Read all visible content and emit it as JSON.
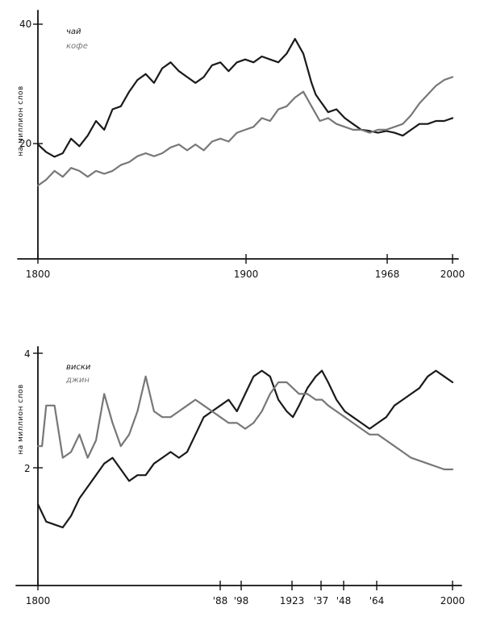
{
  "chart_data": [
    {
      "type": "line",
      "ylabel": "на миллион слов",
      "ylim": [
        0,
        40
      ],
      "y_ticks": [
        20,
        40
      ],
      "xlim": [
        1800,
        2000
      ],
      "x_ticks": [
        "1800",
        "1900",
        "1968",
        "2000"
      ],
      "legend": [
        "чай",
        "кофе"
      ],
      "legend_position": "top-left",
      "grid": false,
      "series": [
        {
          "name": "чай",
          "color": "#1a1a1a",
          "x": [
            1800,
            1804,
            1808,
            1812,
            1816,
            1820,
            1824,
            1828,
            1832,
            1836,
            1840,
            1844,
            1848,
            1852,
            1856,
            1860,
            1864,
            1868,
            1872,
            1876,
            1880,
            1884,
            1888,
            1892,
            1896,
            1900,
            1904,
            1908,
            1912,
            1916,
            1920,
            1924,
            1928,
            1932,
            1934,
            1936,
            1938,
            1940,
            1944,
            1948,
            1952,
            1956,
            1960,
            1964,
            1968,
            1972,
            1976,
            1980,
            1984,
            1988,
            1992,
            1996,
            2000
          ],
          "y": [
            19.5,
            18.2,
            17.4,
            18.0,
            20.5,
            19.2,
            21.0,
            23.5,
            22.0,
            25.5,
            26.0,
            28.5,
            30.5,
            31.5,
            30.0,
            32.5,
            33.5,
            32.0,
            31.0,
            30.0,
            31.0,
            33.0,
            33.5,
            32.0,
            33.5,
            34.0,
            33.5,
            34.5,
            34.0,
            33.5,
            35.0,
            37.5,
            35.0,
            30.0,
            28.0,
            27.0,
            26.0,
            25.0,
            25.5,
            24.0,
            23.0,
            22.0,
            21.8,
            21.5,
            21.8,
            21.5,
            21.0,
            22.0,
            23.0,
            23.0,
            23.5,
            23.5,
            24.0
          ]
        },
        {
          "name": "кофе",
          "color": "#777777",
          "x": [
            1800,
            1804,
            1808,
            1812,
            1816,
            1820,
            1824,
            1828,
            1832,
            1836,
            1840,
            1844,
            1848,
            1852,
            1856,
            1860,
            1864,
            1868,
            1872,
            1876,
            1880,
            1884,
            1888,
            1892,
            1896,
            1900,
            1904,
            1908,
            1912,
            1916,
            1920,
            1924,
            1928,
            1932,
            1936,
            1940,
            1944,
            1948,
            1952,
            1956,
            1960,
            1964,
            1968,
            1972,
            1976,
            1980,
            1984,
            1988,
            1992,
            1996,
            2000
          ],
          "y": [
            12.5,
            13.5,
            15.0,
            14.0,
            15.5,
            15.0,
            14.0,
            15.0,
            14.5,
            15.0,
            16.0,
            16.5,
            17.5,
            18.0,
            17.5,
            18.0,
            19.0,
            19.5,
            18.5,
            19.5,
            18.5,
            20.0,
            20.5,
            20.0,
            21.5,
            22.0,
            22.5,
            24.0,
            23.5,
            25.5,
            26.0,
            27.5,
            28.5,
            26.0,
            23.5,
            24.0,
            23.0,
            22.5,
            22.0,
            22.0,
            21.5,
            22.0,
            22.0,
            22.5,
            23.0,
            24.5,
            26.5,
            28.0,
            29.5,
            30.5,
            31.0
          ]
        }
      ]
    },
    {
      "type": "line",
      "ylabel": "на миллион слов",
      "ylim": [
        0,
        4
      ],
      "y_ticks": [
        2,
        4
      ],
      "xlim": [
        1800,
        2000
      ],
      "x_ticks": [
        "1800",
        "'88",
        "'98",
        "1923",
        "'37",
        "'48",
        "'64",
        "2000"
      ],
      "legend": [
        "виски",
        "джин"
      ],
      "legend_position": "top-left",
      "grid": false,
      "series": [
        {
          "name": "виски",
          "color": "#1a1a1a",
          "x": [
            1800,
            1804,
            1808,
            1812,
            1816,
            1820,
            1824,
            1828,
            1832,
            1836,
            1840,
            1844,
            1848,
            1852,
            1856,
            1860,
            1864,
            1868,
            1872,
            1876,
            1880,
            1884,
            1888,
            1892,
            1896,
            1900,
            1904,
            1908,
            1912,
            1916,
            1920,
            1923,
            1926,
            1930,
            1934,
            1937,
            1940,
            1944,
            1948,
            1952,
            1956,
            1960,
            1964,
            1968,
            1972,
            1976,
            1980,
            1984,
            1988,
            1992,
            1996,
            2000
          ],
          "y": [
            1.4,
            1.1,
            1.05,
            1.0,
            1.2,
            1.5,
            1.7,
            1.9,
            2.1,
            2.2,
            2.0,
            1.8,
            1.9,
            1.9,
            2.1,
            2.2,
            2.3,
            2.2,
            2.3,
            2.6,
            2.9,
            3.0,
            3.1,
            3.2,
            3.0,
            3.3,
            3.6,
            3.7,
            3.6,
            3.2,
            3.0,
            2.9,
            3.1,
            3.4,
            3.6,
            3.7,
            3.5,
            3.2,
            3.0,
            2.9,
            2.8,
            2.7,
            2.8,
            2.9,
            3.1,
            3.2,
            3.3,
            3.4,
            3.6,
            3.7,
            3.6,
            3.5
          ]
        },
        {
          "name": "джин",
          "color": "#777777",
          "x": [
            1800,
            1802,
            1804,
            1808,
            1812,
            1816,
            1820,
            1824,
            1828,
            1832,
            1836,
            1840,
            1844,
            1848,
            1852,
            1856,
            1860,
            1864,
            1868,
            1872,
            1876,
            1880,
            1884,
            1888,
            1892,
            1896,
            1900,
            1904,
            1908,
            1912,
            1916,
            1920,
            1923,
            1926,
            1930,
            1934,
            1937,
            1940,
            1944,
            1948,
            1952,
            1956,
            1960,
            1964,
            1968,
            1972,
            1976,
            1980,
            1984,
            1988,
            1992,
            1996,
            2000
          ],
          "y": [
            2.4,
            2.4,
            3.1,
            3.1,
            2.2,
            2.3,
            2.6,
            2.2,
            2.5,
            3.3,
            2.8,
            2.4,
            2.6,
            3.0,
            3.6,
            3.0,
            2.9,
            2.9,
            3.0,
            3.1,
            3.2,
            3.1,
            3.0,
            2.9,
            2.8,
            2.8,
            2.7,
            2.8,
            3.0,
            3.3,
            3.5,
            3.5,
            3.4,
            3.3,
            3.3,
            3.2,
            3.2,
            3.1,
            3.0,
            2.9,
            2.8,
            2.7,
            2.6,
            2.6,
            2.5,
            2.4,
            2.3,
            2.2,
            2.15,
            2.1,
            2.05,
            2.0,
            2.0
          ]
        }
      ]
    }
  ]
}
